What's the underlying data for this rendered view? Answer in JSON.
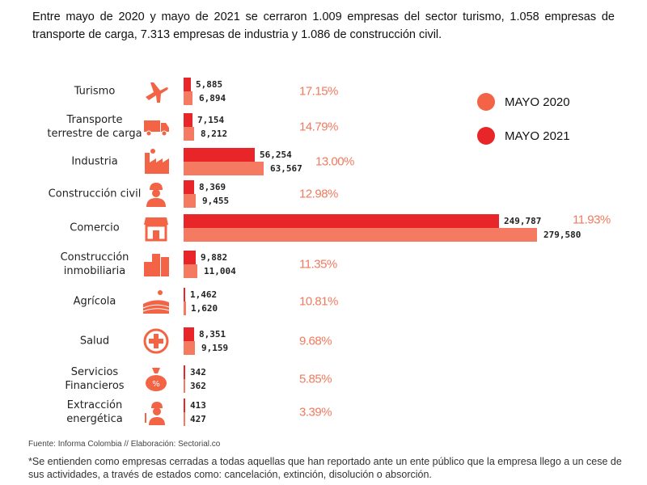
{
  "intro": "Entre mayo de 2020 y mayo de 2021 se cerraron 1.009 empresas del sector turismo, 1.058 empresas de transporte de carga, 7.313 empresas de industria y 1.086 de construcción civil.",
  "colors": {
    "mayo_2020": "#f47b62",
    "mayo_2021": "#e8262a",
    "percent": "#f07a5e"
  },
  "legend": [
    {
      "label": "MAYO 2020",
      "color": "#f26445"
    },
    {
      "label": "MAYO 2021",
      "color": "#e8262a"
    }
  ],
  "chart_data": {
    "type": "bar",
    "orientation": "horizontal",
    "categories": [
      "Turismo",
      "Transporte terrestre de carga",
      "Industria",
      "Construcción civil",
      "Comercio",
      "Construcción inmobiliaria",
      "Agrícola",
      "Salud",
      "Servicios Financieros",
      "Extracción energética"
    ],
    "icons": [
      "airplane-icon",
      "truck-icon",
      "factory-icon",
      "construction-worker-icon",
      "store-icon",
      "buildings-icon",
      "farm-field-icon",
      "health-cross-icon",
      "money-bag-icon",
      "energy-worker-icon"
    ],
    "series": [
      {
        "name": "MAYO 2021",
        "values": [
          5885,
          7154,
          56254,
          8369,
          249787,
          9882,
          1462,
          8351,
          342,
          413
        ],
        "labels": [
          "5,885",
          "7,154",
          "56,254",
          "8,369",
          "249,787",
          "9,882",
          "1,462",
          "8,351",
          "342",
          "413"
        ]
      },
      {
        "name": "MAYO 2020",
        "values": [
          6894,
          8212,
          63567,
          9455,
          279580,
          11004,
          1620,
          9159,
          362,
          427
        ],
        "labels": [
          "6,894",
          "8,212",
          "63,567",
          "9,455",
          "279,580",
          "11,004",
          "1,620",
          "9,159",
          "362",
          "427"
        ]
      }
    ],
    "percent_labels": [
      "17.15%",
      "14.79%",
      "13.00%",
      "12.98%",
      "11.93%",
      "11.35%",
      "10.81%",
      "9.68%",
      "5.85%",
      "3.39%"
    ],
    "legend_position": "top-right",
    "grid": false
  },
  "source": "Fuente: Informa Colombia // Elaboración: Sectorial.co",
  "note": "*Se entienden como empresas cerradas a todas aquellas que han reportado ante un ente público que la empresa llego a un cese de sus actividades, a través de estados como: cancelación, extinción, disolución o absorción."
}
